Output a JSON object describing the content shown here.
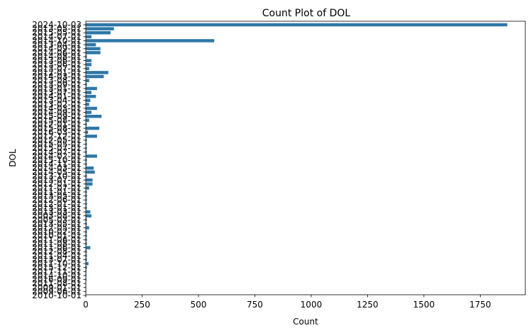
{
  "chart_data": {
    "type": "bar",
    "orientation": "horizontal",
    "title": "Count Plot of DOL",
    "xlabel": "Count",
    "ylabel": "DOL",
    "xlim": [
      0,
      1950
    ],
    "x_ticks": [
      0,
      250,
      500,
      750,
      1000,
      1250,
      1500,
      1750
    ],
    "grid": false,
    "bar_color": "#2e77a8",
    "categories": [
      "2024-10-03",
      "2013-05-01",
      "2015-05-01",
      "2014-07-01",
      "2014-10-01",
      "2013-04-01",
      "2014-09-01",
      "2014-06-01",
      "2014-08-01",
      "2013-06-01",
      "2013-06-01",
      "2013-07-01",
      "2012-01-01",
      "2014-03-01",
      "2013-08-01",
      "2013-09-01",
      "2013-01-01",
      "2013-07-01",
      "2014-01-01",
      "2013-04-01",
      "2013-02-01",
      "2014-03-01",
      "2014-09-01",
      "2015-09-01",
      "2015-08-01",
      "2012-01-01",
      "2015-08-01",
      "2016-03-01",
      "2012-12-01",
      "2012-05-01",
      "2015-05-01",
      "2015-07-01",
      "2014-07-01",
      "2014-02-01",
      "2015-10-01",
      "2014-11-01",
      "2014-03-01",
      "2014-05-01",
      "2013-10-01",
      "2013-07-01",
      "2012-01-01",
      "2011-07-01",
      "2011-01-01",
      "2013-05-01",
      "2012-06-01",
      "2012-01-01",
      "2013-01-01",
      "2013-03-01",
      "2003-08-01",
      "2005-03-01",
      "2013-05-01",
      "2012-05-01",
      "2010-02-01",
      "2010-01-01",
      "2011-06-01",
      "2011-08-01",
      "2011-06-01",
      "2012-08-01",
      "2011-04-01",
      "2013-07-01",
      "2011-10-01",
      "2015-12-01",
      "2017-11-01",
      "2014-10-01",
      "2016-09-01",
      "2011-08-01",
      "2009-01-01",
      "2009-06-01",
      "2010-10-01"
    ],
    "values": [
      1870,
      125,
      110,
      25,
      570,
      45,
      65,
      65,
      5,
      25,
      25,
      15,
      100,
      80,
      15,
      5,
      50,
      25,
      45,
      20,
      15,
      50,
      25,
      70,
      15,
      5,
      60,
      10,
      50,
      5,
      5,
      5,
      5,
      50,
      5,
      5,
      35,
      40,
      5,
      30,
      30,
      15,
      5,
      5,
      5,
      5,
      5,
      20,
      25,
      5,
      5,
      15,
      5,
      5,
      5,
      5,
      20,
      5,
      5,
      5,
      12,
      5,
      3,
      3,
      3,
      2,
      2,
      2,
      2
    ]
  }
}
